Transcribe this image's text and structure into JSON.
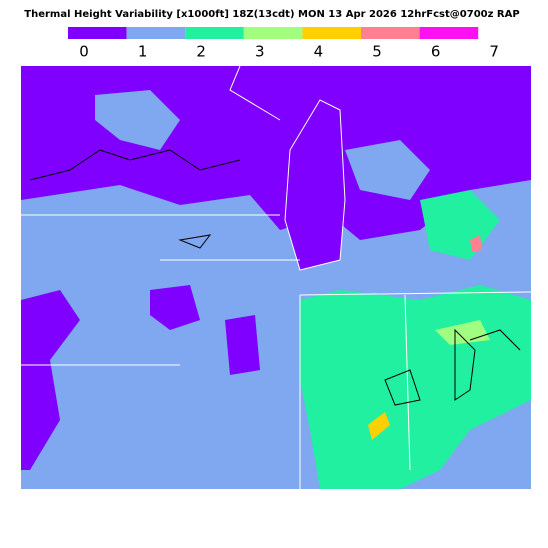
{
  "header": {
    "title": "Thermal Height Variability [x1000ft] 18Z(13cdt) MON 13 Apr 2026 12hrFcst@0700z RAP"
  },
  "legend": {
    "labels": [
      "0",
      "1",
      "2",
      "3",
      "4",
      "5",
      "6",
      "7"
    ],
    "colors": [
      "#7f00ff",
      "#80a8f0",
      "#20f0a0",
      "#a0ff80",
      "#ffd000",
      "#ff8090",
      "#ff10f0"
    ]
  }
}
